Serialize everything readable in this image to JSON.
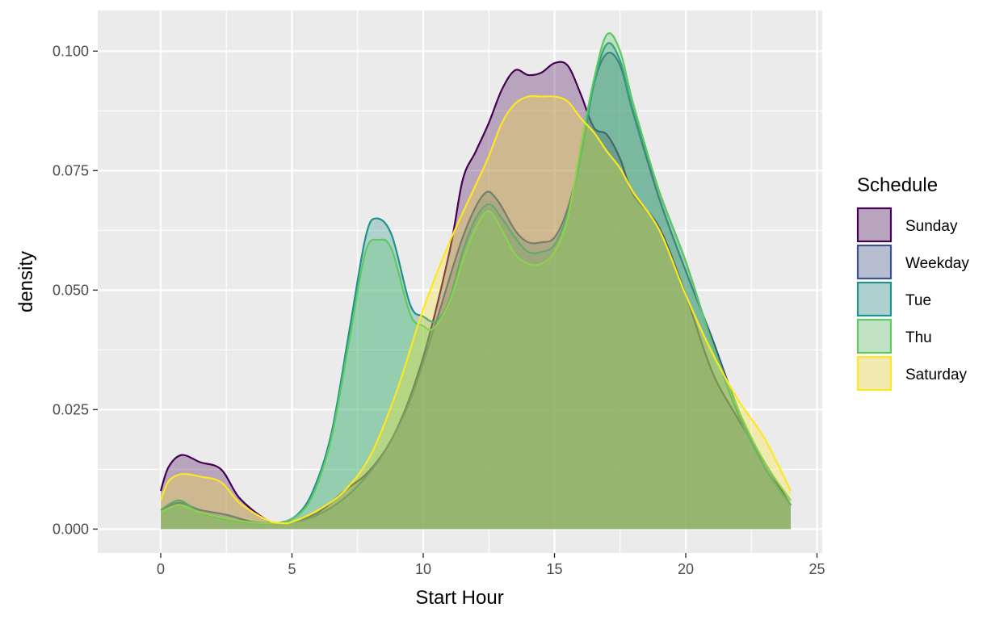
{
  "chart_data": {
    "type": "area",
    "subtype": "density",
    "xlabel": "Start Hour",
    "ylabel": "density",
    "xlim": [
      -2.4,
      25.2
    ],
    "ylim": [
      -0.005,
      0.1085
    ],
    "x_ticks": [
      0,
      5,
      10,
      15,
      20,
      25
    ],
    "x_tick_labels": [
      "0",
      "5",
      "10",
      "15",
      "20",
      "25"
    ],
    "y_ticks": [
      0,
      0.025,
      0.05,
      0.075,
      0.1
    ],
    "y_tick_labels": [
      "0.000",
      "0.025",
      "0.050",
      "0.075",
      "0.100"
    ],
    "grid": true,
    "legend": {
      "title": "Schedule",
      "position": "right"
    },
    "fill_opacity": 0.3,
    "series": [
      {
        "name": "Sunday",
        "color": "#440154",
        "points": [
          [
            0,
            0.008
          ],
          [
            0.3,
            0.013
          ],
          [
            0.8,
            0.0155
          ],
          [
            1.5,
            0.014
          ],
          [
            2.3,
            0.0125
          ],
          [
            3,
            0.0065
          ],
          [
            4,
            0.002
          ],
          [
            4.5,
            0.0013
          ],
          [
            5,
            0.0015
          ],
          [
            6,
            0.0035
          ],
          [
            7,
            0.008
          ],
          [
            8,
            0.0125
          ],
          [
            9,
            0.021
          ],
          [
            10,
            0.036
          ],
          [
            11,
            0.058
          ],
          [
            11.5,
            0.073
          ],
          [
            12,
            0.079
          ],
          [
            12.5,
            0.085
          ],
          [
            13,
            0.092
          ],
          [
            13.5,
            0.096
          ],
          [
            14,
            0.095
          ],
          [
            14.5,
            0.0955
          ],
          [
            15,
            0.0975
          ],
          [
            15.5,
            0.097
          ],
          [
            16,
            0.091
          ],
          [
            16.5,
            0.084
          ],
          [
            17,
            0.0825
          ],
          [
            17.5,
            0.0775
          ],
          [
            18,
            0.07
          ],
          [
            19,
            0.063
          ],
          [
            20,
            0.049
          ],
          [
            21,
            0.033
          ],
          [
            22,
            0.023
          ],
          [
            23,
            0.014
          ],
          [
            24,
            0.005
          ]
        ]
      },
      {
        "name": "Weekday",
        "color": "#3b528b",
        "points": [
          [
            0,
            0.004
          ],
          [
            0.7,
            0.0055
          ],
          [
            1.5,
            0.004
          ],
          [
            2.5,
            0.003
          ],
          [
            3.5,
            0.0015
          ],
          [
            4.5,
            0.0013
          ],
          [
            5.5,
            0.002
          ],
          [
            6.5,
            0.0045
          ],
          [
            7.5,
            0.009
          ],
          [
            8.5,
            0.016
          ],
          [
            9.5,
            0.027
          ],
          [
            10.5,
            0.0435
          ],
          [
            11.5,
            0.061
          ],
          [
            12.3,
            0.07
          ],
          [
            12.8,
            0.069
          ],
          [
            13.5,
            0.0625
          ],
          [
            14,
            0.06
          ],
          [
            14.5,
            0.06
          ],
          [
            15,
            0.061
          ],
          [
            15.5,
            0.067
          ],
          [
            16,
            0.078
          ],
          [
            16.5,
            0.093
          ],
          [
            17,
            0.0995
          ],
          [
            17.5,
            0.097
          ],
          [
            18,
            0.087
          ],
          [
            19,
            0.069
          ],
          [
            20,
            0.054
          ],
          [
            21,
            0.04
          ],
          [
            22,
            0.025
          ],
          [
            23,
            0.013
          ],
          [
            24,
            0.005
          ]
        ]
      },
      {
        "name": "Tue",
        "color": "#21918c",
        "points": [
          [
            0,
            0.004
          ],
          [
            0.7,
            0.006
          ],
          [
            1.5,
            0.0035
          ],
          [
            2.5,
            0.002
          ],
          [
            3.5,
            0.0013
          ],
          [
            4.5,
            0.0013
          ],
          [
            5.2,
            0.003
          ],
          [
            5.8,
            0.008
          ],
          [
            6.5,
            0.02
          ],
          [
            7.2,
            0.042
          ],
          [
            7.8,
            0.061
          ],
          [
            8.2,
            0.065
          ],
          [
            8.8,
            0.0615
          ],
          [
            9.5,
            0.047
          ],
          [
            10,
            0.0445
          ],
          [
            10.5,
            0.0435
          ],
          [
            11,
            0.048
          ],
          [
            11.5,
            0.058
          ],
          [
            12,
            0.065
          ],
          [
            12.5,
            0.068
          ],
          [
            13,
            0.065
          ],
          [
            13.5,
            0.061
          ],
          [
            14,
            0.058
          ],
          [
            14.5,
            0.058
          ],
          [
            15,
            0.0595
          ],
          [
            15.5,
            0.066
          ],
          [
            16,
            0.078
          ],
          [
            16.5,
            0.093
          ],
          [
            17,
            0.1015
          ],
          [
            17.5,
            0.098
          ],
          [
            18,
            0.0875
          ],
          [
            19,
            0.0705
          ],
          [
            20,
            0.056
          ],
          [
            21,
            0.039
          ],
          [
            22,
            0.024
          ],
          [
            23,
            0.013
          ],
          [
            24,
            0.005
          ]
        ]
      },
      {
        "name": "Thu",
        "color": "#5ec962",
        "points": [
          [
            0,
            0.0035
          ],
          [
            0.7,
            0.005
          ],
          [
            1.5,
            0.0035
          ],
          [
            2.5,
            0.0022
          ],
          [
            3.5,
            0.0014
          ],
          [
            4.5,
            0.0013
          ],
          [
            5.2,
            0.0028
          ],
          [
            5.8,
            0.0072
          ],
          [
            6.5,
            0.019
          ],
          [
            7.2,
            0.04
          ],
          [
            7.8,
            0.058
          ],
          [
            8.3,
            0.0605
          ],
          [
            8.8,
            0.0585
          ],
          [
            9.5,
            0.045
          ],
          [
            10,
            0.0425
          ],
          [
            10.4,
            0.042
          ],
          [
            11,
            0.0475
          ],
          [
            11.5,
            0.056
          ],
          [
            12,
            0.063
          ],
          [
            12.5,
            0.0665
          ],
          [
            13,
            0.0625
          ],
          [
            13.5,
            0.0575
          ],
          [
            14,
            0.0555
          ],
          [
            14.5,
            0.0555
          ],
          [
            15,
            0.058
          ],
          [
            15.5,
            0.065
          ],
          [
            16,
            0.08
          ],
          [
            16.5,
            0.094
          ],
          [
            17,
            0.1035
          ],
          [
            17.5,
            0.1
          ],
          [
            18,
            0.089
          ],
          [
            19,
            0.0705
          ],
          [
            20,
            0.056
          ],
          [
            21,
            0.039
          ],
          [
            22,
            0.025
          ],
          [
            23,
            0.014
          ],
          [
            24,
            0.006
          ]
        ]
      },
      {
        "name": "Saturday",
        "color": "#fde725",
        "points": [
          [
            0,
            0.006
          ],
          [
            0.3,
            0.01
          ],
          [
            0.8,
            0.0115
          ],
          [
            1.5,
            0.011
          ],
          [
            2.3,
            0.0098
          ],
          [
            3,
            0.0055
          ],
          [
            4,
            0.002
          ],
          [
            4.5,
            0.0013
          ],
          [
            5,
            0.0015
          ],
          [
            6,
            0.004
          ],
          [
            7,
            0.008
          ],
          [
            8,
            0.0155
          ],
          [
            9,
            0.029
          ],
          [
            10,
            0.046
          ],
          [
            11,
            0.06
          ],
          [
            12,
            0.072
          ],
          [
            12.5,
            0.078
          ],
          [
            13,
            0.085
          ],
          [
            13.5,
            0.089
          ],
          [
            14,
            0.0905
          ],
          [
            14.5,
            0.0905
          ],
          [
            15,
            0.0905
          ],
          [
            15.5,
            0.0895
          ],
          [
            16,
            0.086
          ],
          [
            16.5,
            0.083
          ],
          [
            17,
            0.079
          ],
          [
            17.5,
            0.0755
          ],
          [
            18,
            0.0705
          ],
          [
            19,
            0.0625
          ],
          [
            20,
            0.049
          ],
          [
            21,
            0.037
          ],
          [
            22,
            0.027
          ],
          [
            23,
            0.019
          ],
          [
            24,
            0.008
          ]
        ]
      }
    ]
  }
}
